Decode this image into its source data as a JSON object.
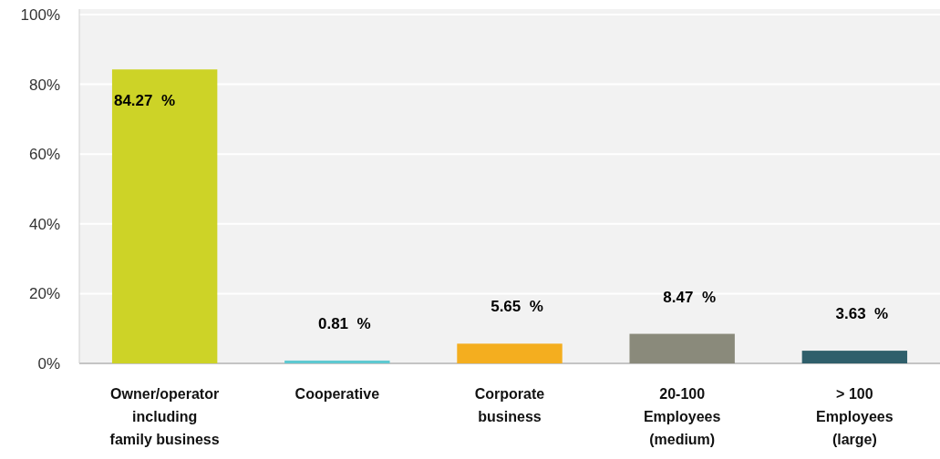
{
  "chart_data": {
    "type": "bar",
    "categories": [
      "Owner/operator\nincluding\nfamily business",
      "Cooperative",
      "Corporate\nbusiness",
      "20-100\nEmployees\n(medium)",
      "> 100\nEmployees\n(large)"
    ],
    "values": [
      84.27,
      0.81,
      5.65,
      8.47,
      3.63
    ],
    "colors": [
      "#cdd327",
      "#5ec9d1",
      "#f4ae1f",
      "#8a8a7b",
      "#2f5f6b"
    ],
    "value_labels": [
      "84.27  %",
      "0.81  %",
      "5.65  %",
      "8.47  %",
      "3.63  %"
    ],
    "ylim": [
      0,
      100
    ],
    "yticks": [
      {
        "value": 0,
        "label": "0%"
      },
      {
        "value": 20,
        "label": "20%"
      },
      {
        "value": 40,
        "label": "40%"
      },
      {
        "value": 60,
        "label": "60%"
      },
      {
        "value": 80,
        "label": "80%"
      },
      {
        "value": 100,
        "label": "100%"
      }
    ],
    "grid": "y"
  }
}
